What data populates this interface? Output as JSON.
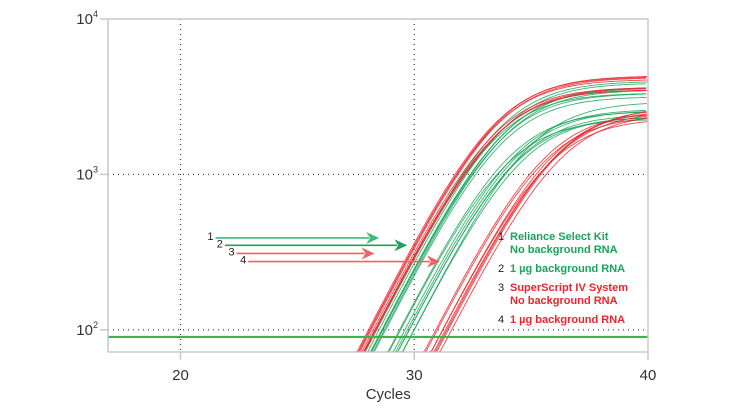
{
  "chart_data": {
    "type": "line",
    "title": "",
    "xlabel": "Cycles",
    "ylabel": "",
    "x_scale": "linear",
    "y_scale": "log",
    "xlim": [
      16.9,
      40
    ],
    "ylim": [
      72,
      10000
    ],
    "x_ticks": [
      {
        "value": 20,
        "label": "20"
      },
      {
        "value": 30,
        "label": "30"
      },
      {
        "value": 40,
        "label": "40"
      }
    ],
    "y_ticks": [
      {
        "value": 100,
        "base": "10",
        "exp": "2"
      },
      {
        "value": 1000,
        "base": "10",
        "exp": "3"
      },
      {
        "value": 10000,
        "base": "10",
        "exp": "4"
      }
    ],
    "grid": "dotted at x=20, x=30, y=10^2, y=10^3",
    "threshold": {
      "value": 90,
      "color": "#3cb44b"
    },
    "colors": {
      "green": "#1aa35a",
      "red": "#e8262d",
      "green_light": "#5cc48a",
      "red_light": "#f06065"
    },
    "series": [
      {
        "name": "Reliance Select Kit, No background RNA",
        "group": 1,
        "color": "#1aa35a",
        "ct": 28.5,
        "plateau": 3600,
        "replicates": 8
      },
      {
        "name": "Reliance Select Kit, 1 µg background RNA",
        "group": 2,
        "color": "#1aa35a",
        "ct": 29.5,
        "plateau": 2600,
        "replicates": 8
      },
      {
        "name": "SuperScript IV System, No background RNA",
        "group": 3,
        "color": "#e8262d",
        "ct": 28.2,
        "plateau": 3800,
        "replicates": 8
      },
      {
        "name": "SuperScript IV System, 1 µg background RNA",
        "group": 4,
        "color": "#e8262d",
        "ct": 31.1,
        "plateau": 2600,
        "replicates": 8
      }
    ],
    "arrows": [
      {
        "label": "1",
        "color": "#3dbb7a",
        "start_x": 21.5,
        "end_x": 28.5,
        "y": 390
      },
      {
        "label": "2",
        "color": "#1aa35a",
        "start_x": 21.9,
        "end_x": 29.7,
        "y": 350
      },
      {
        "label": "3",
        "color": "#f06065",
        "start_x": 22.4,
        "end_x": 28.3,
        "y": 310
      },
      {
        "label": "4",
        "color": "#f06065",
        "start_x": 22.9,
        "end_x": 31.1,
        "y": 275
      }
    ],
    "legend": {
      "placement": "right-center",
      "entries": [
        {
          "num": "1",
          "lines": [
            "Reliance Select Kit",
            "No background RNA"
          ],
          "color": "#1aa35a"
        },
        {
          "num": "2",
          "lines": [
            "1 µg background RNA"
          ],
          "color": "#1aa35a"
        },
        {
          "num": "3",
          "lines": [
            "SuperScript IV System",
            "No background RNA"
          ],
          "color": "#e8262d"
        },
        {
          "num": "4",
          "lines": [
            "1 µg background RNA"
          ],
          "color": "#e8262d"
        }
      ]
    }
  }
}
